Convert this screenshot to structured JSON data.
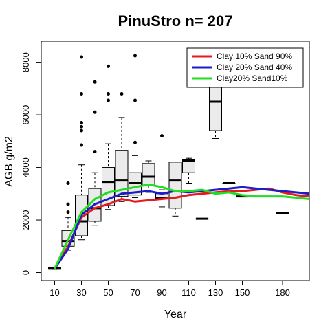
{
  "chart_data": {
    "type": "line",
    "title": "PinuStro n= 207",
    "xlabel": "Year",
    "ylabel": "AGB g/m2",
    "xlim": [
      0,
      200
    ],
    "ylim": [
      -300,
      8800
    ],
    "x_ticks": [
      10,
      30,
      50,
      70,
      90,
      110,
      130,
      150,
      180
    ],
    "y_ticks": [
      0,
      2000,
      4000,
      6000,
      8000
    ],
    "legend_position": "top-right",
    "grid": false,
    "series": [
      {
        "name": "Clay 10% Sand 90%",
        "color": "#e41a1c",
        "points": [
          [
            10,
            150
          ],
          [
            20,
            1000
          ],
          [
            30,
            2100
          ],
          [
            40,
            2450
          ],
          [
            50,
            2600
          ],
          [
            60,
            2800
          ],
          [
            70,
            2700
          ],
          [
            80,
            2750
          ],
          [
            90,
            2800
          ],
          [
            100,
            2850
          ],
          [
            110,
            2950
          ],
          [
            120,
            3000
          ],
          [
            130,
            3050
          ],
          [
            140,
            3100
          ],
          [
            150,
            3100
          ],
          [
            160,
            3150
          ],
          [
            170,
            3200
          ],
          [
            180,
            3050
          ],
          [
            190,
            2950
          ],
          [
            200,
            2900
          ],
          [
            210,
            2850
          ]
        ]
      },
      {
        "name": "Clay 20% Sand 40%",
        "color": "#1c1cc8",
        "points": [
          [
            10,
            150
          ],
          [
            20,
            900
          ],
          [
            30,
            2200
          ],
          [
            40,
            2600
          ],
          [
            50,
            2800
          ],
          [
            60,
            3000
          ],
          [
            70,
            3050
          ],
          [
            80,
            3100
          ],
          [
            90,
            3000
          ],
          [
            100,
            3100
          ],
          [
            110,
            3050
          ],
          [
            120,
            3100
          ],
          [
            130,
            3150
          ],
          [
            140,
            3200
          ],
          [
            150,
            3250
          ],
          [
            160,
            3200
          ],
          [
            170,
            3150
          ],
          [
            180,
            3100
          ],
          [
            190,
            3050
          ],
          [
            200,
            3000
          ],
          [
            210,
            3000
          ]
        ]
      },
      {
        "name": "Clay20% Sand10%",
        "color": "#22dd22",
        "points": [
          [
            10,
            150
          ],
          [
            20,
            1250
          ],
          [
            30,
            2300
          ],
          [
            40,
            2800
          ],
          [
            50,
            3050
          ],
          [
            60,
            3150
          ],
          [
            70,
            3250
          ],
          [
            80,
            3350
          ],
          [
            90,
            3250
          ],
          [
            100,
            3100
          ],
          [
            110,
            3100
          ],
          [
            120,
            3150
          ],
          [
            130,
            3000
          ],
          [
            140,
            3050
          ],
          [
            150,
            2950
          ],
          [
            160,
            2900
          ],
          [
            170,
            2900
          ],
          [
            180,
            2900
          ],
          [
            190,
            2850
          ],
          [
            200,
            2800
          ],
          [
            210,
            2750
          ]
        ]
      }
    ],
    "boxplots": [
      {
        "x": 10,
        "q1": 150,
        "median": 180,
        "q3": 210,
        "wlo": 150,
        "whi": 210,
        "outliers": []
      },
      {
        "x": 20,
        "q1": 1000,
        "median": 1200,
        "q3": 1600,
        "wlo": 850,
        "whi": 2100,
        "outliers": [
          2300,
          2600,
          3400
        ]
      },
      {
        "x": 30,
        "q1": 1400,
        "median": 1950,
        "q3": 2950,
        "wlo": 1250,
        "whi": 4100,
        "outliers": [
          4850,
          5400,
          5550,
          5700,
          6800,
          8200
        ]
      },
      {
        "x": 40,
        "q1": 1950,
        "median": 2450,
        "q3": 3200,
        "wlo": 1800,
        "whi": 3800,
        "outliers": [
          4600,
          6100,
          7250
        ]
      },
      {
        "x": 50,
        "q1": 2550,
        "median": 3450,
        "q3": 4000,
        "wlo": 2400,
        "whi": 4900,
        "outliers": [
          6550,
          6800,
          7850
        ]
      },
      {
        "x": 60,
        "q1": 2900,
        "median": 3500,
        "q3": 4650,
        "wlo": 2700,
        "whi": 5900,
        "outliers": [
          6800
        ]
      },
      {
        "x": 70,
        "q1": 2950,
        "median": 3400,
        "q3": 3800,
        "wlo": 2850,
        "whi": 4450,
        "outliers": [
          4950,
          6550,
          8250
        ]
      },
      {
        "x": 80,
        "q1": 3300,
        "median": 3650,
        "q3": 4150,
        "wlo": 3050,
        "whi": 4250,
        "outliers": []
      },
      {
        "x": 90,
        "q1": 2800,
        "median": 2850,
        "q3": 3000,
        "wlo": 2500,
        "whi": 3150,
        "outliers": [
          5200
        ]
      },
      {
        "x": 100,
        "q1": 2450,
        "median": 3500,
        "q3": 4200,
        "wlo": 2150,
        "whi": 4200,
        "outliers": []
      },
      {
        "x": 110,
        "q1": 3800,
        "median": 4250,
        "q3": 4300,
        "wlo": 3400,
        "whi": 4350,
        "outliers": []
      },
      {
        "x": 120,
        "q1": 2050,
        "median": 2050,
        "q3": 2050,
        "wlo": 2050,
        "whi": 2050,
        "outliers": []
      },
      {
        "x": 130,
        "q1": 5400,
        "median": 6500,
        "q3": 7500,
        "wlo": 5100,
        "whi": 7800,
        "outliers": []
      },
      {
        "x": 140,
        "q1": 3400,
        "median": 3400,
        "q3": 3400,
        "wlo": 3400,
        "whi": 3400,
        "outliers": []
      },
      {
        "x": 150,
        "q1": 2900,
        "median": 2900,
        "q3": 2900,
        "wlo": 2900,
        "whi": 2900,
        "outliers": []
      },
      {
        "x": 180,
        "q1": 2250,
        "median": 2250,
        "q3": 2250,
        "wlo": 2250,
        "whi": 2250,
        "outliers": []
      }
    ]
  }
}
